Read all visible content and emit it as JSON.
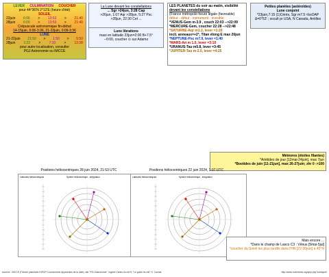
{
  "sun_box": {
    "h_lever": "LEVER",
    "h_culm": "CULMINATION",
    "h_couch": "COUCHER",
    "place": "pour 44°36'N  2°12'E (heure d'été)",
    "soleil": "SOLEIL",
    "rows": [
      {
        "d": "22juin",
        "a": "6:06",
        "b": ">",
        "c": "13:53",
        "e": ">",
        "f": "21:40"
      },
      {
        "d": "28juin",
        "a": "6:09",
        "b": ">",
        "c": "13:53",
        "e": ">",
        "f": "21:40"
      }
    ],
    "crep_title": "Crépuscule astronomique fin-début",
    "crep1": "14-15juin, 0:06-3:36, 21-22juin, 0:09-3:36",
    "lune": "LUNE",
    "lrows": [
      {
        "d": "21-22juin",
        "a": "21:50",
        "b": ">",
        "c": "1:50",
        "e": ">",
        "f": "5:50"
      },
      {
        "d": "28juin",
        "a": "1:22",
        "b": ">",
        "c": "7:10",
        "e": ">",
        "f": "13:28"
      }
    ],
    "note1": "pour autre localisation, consulter",
    "note2": "PGJ Astronomie ou IMCCE"
  },
  "moon_box": {
    "title": "La Lune devant les constellations",
    "l1": "... Sgr >24jun, 3:28 Cap",
    "l2": ">26jun, 1:07 Aqr >28jun, 5:27 Psc",
    ">l3": ">28jun, 22:30 Cet ..."
  },
  "lib_box": {
    "title": "Lune librations",
    "l1": "maxi en latitude 23jun=2:00 B+7.5°",
    "l2": "--0:00, coucher ⊙ sur Adamo"
  },
  "planets_box": {
    "title": "LES PLANETES du soir au matin, visibilité",
    "sub": "devant les constellations",
    "sub2": "(France métropole-heure légale (favorable)",
    "legend": "début - début - instrument - invisible",
    "items": [
      {
        "t": "*VENUS-Gem m-3.9 , couch 22:03 -->22:09",
        "c": "#000"
      },
      {
        "t": "*MERCURE-Gem, coucher 22:28 -->22:48",
        "c": "#000"
      },
      {
        "t": "*SATURNE-Aqr m1.2, lever =1:20",
        "c": "#c06000"
      },
      {
        "t": "incli. anneaux=+2°, Titan élong E max 26jun",
        "c": "#000"
      },
      {
        "t": "*NEPTUNE-Psc m7.9, lever =1:40",
        "c": "#0030c0"
      },
      {
        "t": "*MARS-Ari m 1.0, lever =3:10",
        "c": "#d00000"
      },
      {
        "t": "*URANUS-Tau m5.8, lever =3:45",
        "c": "#000"
      },
      {
        "t": "*JUPITER-Tau m-2.0, lever =4:25",
        "c": "#9a6a00"
      }
    ]
  },
  "small_box": {
    "title": "Petites planètes (astéroïdes)",
    "sub": "Lune conjoint",
    "l1": "*23juin,7:15 (1)Cérès, Sgr m7.5 ≈bsOAP",
    "l2": "Δ=0°53' ; occult pr USA, N Canada, Antilles"
  },
  "meteors_box": {
    "title": "Météores (étoiles filantes)",
    "l1": "*Ariétides de jour [12mai-24juin], max 7jun",
    "l2": "*Bootides de juin [11-21jun], max 26-27juin; zhr 0 ->100"
  },
  "more_box": {
    "title": "Mais encore ...",
    "l1": "*Dans le champ de Lasco C3 : Vénus [5mai-5jul]",
    "l2": "*coucher du Soleil les plus tardifs dans l'HN [22-30juin] à 45°N"
  },
  "chart1": {
    "title": "Positions héliocentriques 28 juin 2024, 21:53 UTC",
    "legend_l": "Latitudes héliocentriques",
    "legend_r": "Sphère héliocentrique - intégration"
  },
  "chart2": {
    "title": "Positions héliocentriques 22 juin 2024, 1:07 UTC",
    "legend_l": "Latitudes héliocentriques",
    "legend_r": "Sphère héliocentrique - intégration"
  },
  "footer": {
    "left": "sources : IMCCE (Théorie planétaire INPOP Coordonnées Apparentes de la date), site \"PGJ Astronomie\", logiciel  Cartes du ciel 9, \"Le guide du ciel\" G. Cannat",
    "right": "http://www.rochestres.org/spip.php?rubrique0"
  }
}
